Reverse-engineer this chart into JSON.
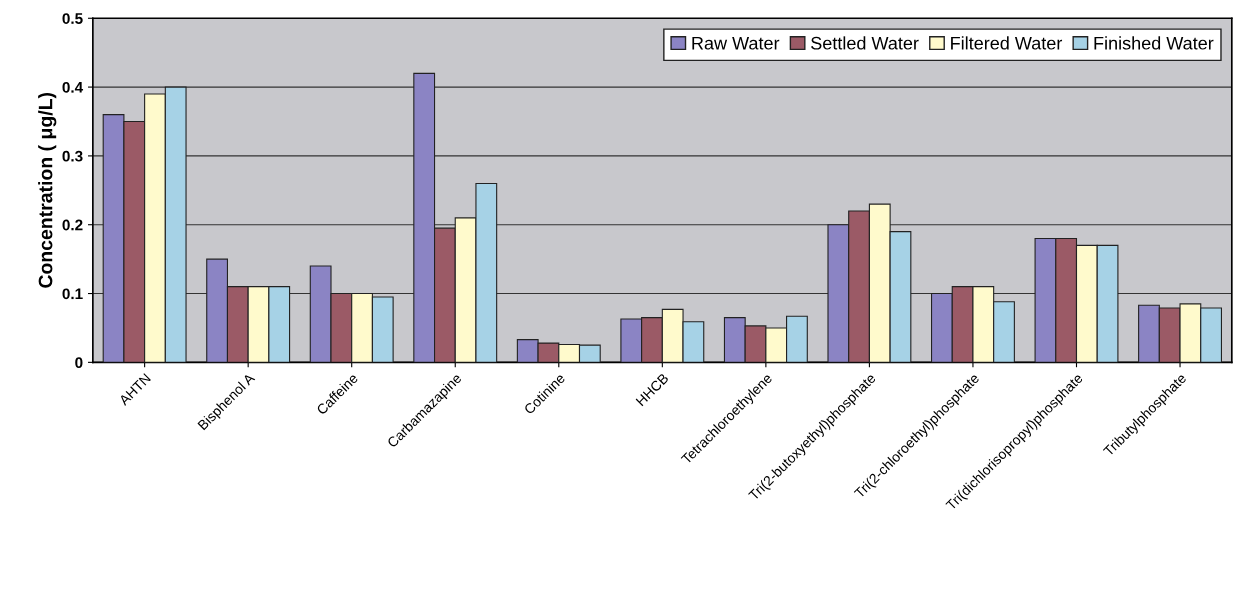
{
  "chart_data": {
    "type": "bar",
    "ylabel": "Concentration ( μg/L)",
    "categories": [
      "AHTN",
      "Bisphenol A",
      "Caffeine",
      "Carbamazapine",
      "Cotinine",
      "HHCB",
      "Tetrachloroethylene",
      "Tri(2-butoxyethyl)phosphate",
      "Tri(2-chloroethyl)phosphate",
      "Tri(dichlorisopropyl)phosphate",
      "Tributylphosphate"
    ],
    "series": [
      {
        "name": "Raw Water",
        "color": "#8b84c4",
        "values": [
          0.36,
          0.15,
          0.14,
          0.42,
          0.033,
          0.063,
          0.065,
          0.2,
          0.1,
          0.18,
          0.083
        ]
      },
      {
        "name": "Settled Water",
        "color": "#9b5a66",
        "values": [
          0.35,
          0.11,
          0.1,
          0.195,
          0.028,
          0.065,
          0.053,
          0.22,
          0.11,
          0.18,
          0.079
        ]
      },
      {
        "name": "Filtered Water",
        "color": "#fffacc",
        "values": [
          0.39,
          0.11,
          0.1,
          0.21,
          0.026,
          0.077,
          0.05,
          0.23,
          0.11,
          0.17,
          0.085
        ]
      },
      {
        "name": "Finished Water",
        "color": "#a6d2e6",
        "values": [
          0.4,
          0.11,
          0.095,
          0.26,
          0.025,
          0.059,
          0.067,
          0.19,
          0.088,
          0.17,
          0.079
        ]
      }
    ],
    "ylim": [
      0,
      0.5
    ],
    "yticks": [
      0,
      0.1,
      0.2,
      0.3,
      0.4,
      0.5
    ],
    "grid": "y",
    "legend": "top right"
  }
}
